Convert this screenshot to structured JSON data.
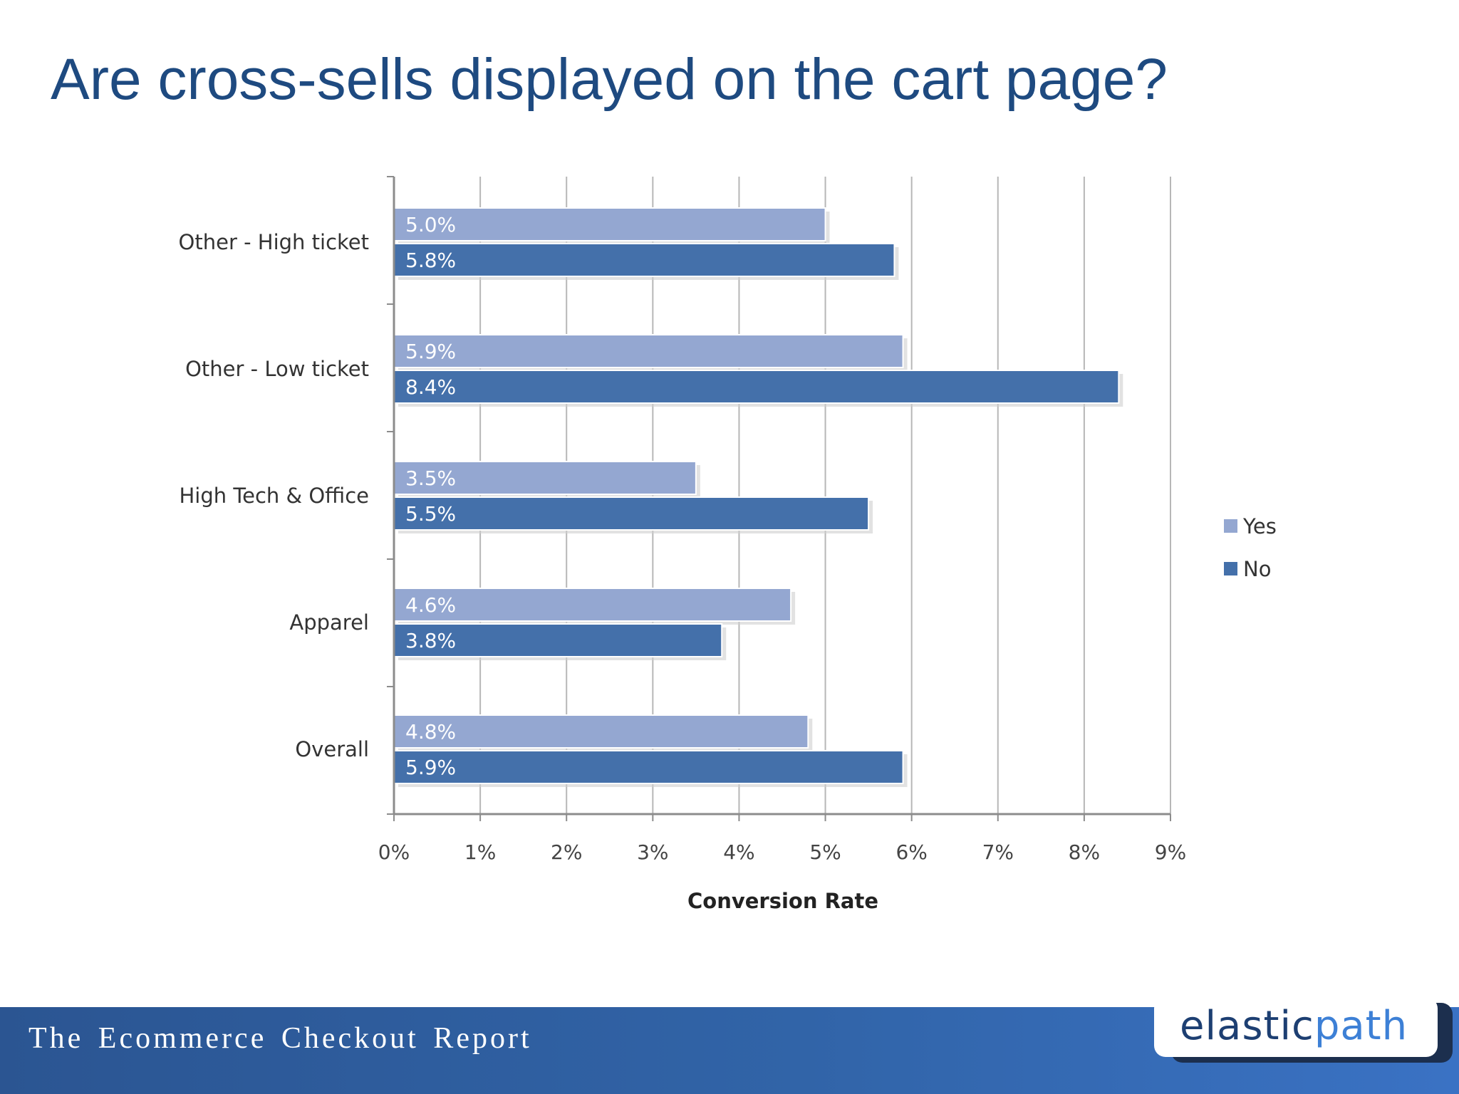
{
  "slide": {
    "title": "Are cross-sells displayed on the cart page?"
  },
  "footer": {
    "report_title": "The Ecommerce Checkout Report",
    "logo_part1": "elastic",
    "logo_part2": "path"
  },
  "chart_data": {
    "type": "bar",
    "orientation": "horizontal",
    "categories": [
      "Other - High ticket",
      "Other - Low ticket",
      "High Tech & Office",
      "Apparel",
      "Overall"
    ],
    "series": [
      {
        "name": "Yes",
        "values": [
          5.0,
          5.9,
          3.5,
          4.6,
          4.8
        ],
        "labels": [
          "5.0%",
          "5.9%",
          "3.5%",
          "4.6%",
          "4.8%"
        ],
        "color": "#94a7d1"
      },
      {
        "name": "No",
        "values": [
          5.8,
          8.4,
          5.5,
          3.8,
          5.9
        ],
        "labels": [
          "5.8%",
          "8.4%",
          "5.5%",
          "3.8%",
          "5.9%"
        ],
        "color": "#4470aa"
      }
    ],
    "xlabel": "Conversion Rate",
    "xlim": [
      0,
      9
    ],
    "x_ticks": [
      0,
      1,
      2,
      3,
      4,
      5,
      6,
      7,
      8,
      9
    ],
    "x_tick_labels": [
      "0%",
      "1%",
      "2%",
      "3%",
      "4%",
      "5%",
      "6%",
      "7%",
      "8%",
      "9%"
    ],
    "grid": true,
    "legend_position": "right"
  }
}
